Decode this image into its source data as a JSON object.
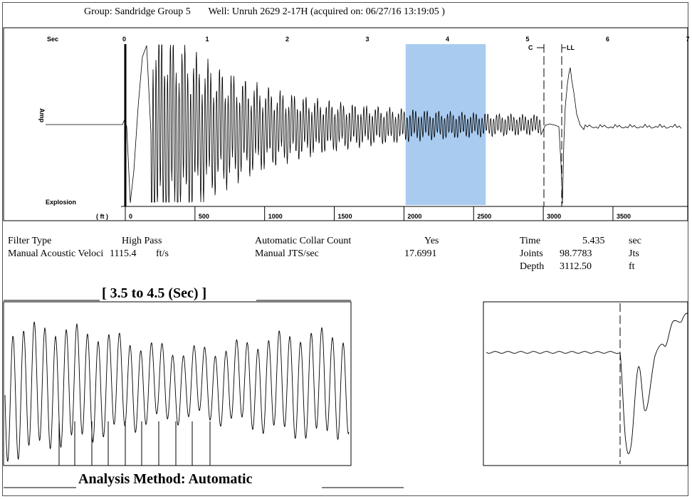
{
  "header": {
    "group": "Group: Sandridge Group 5",
    "well": "Well: Unruh 2629 2-17H (acquired on: 06/27/16 13:19:05 )"
  },
  "main_chart": {
    "sec_label": "Sec",
    "ft_label": "( ft )",
    "explosion_label": "Explosion",
    "amp_label": "Amp",
    "c_marker": "C",
    "ll_marker": "LL",
    "sec_ticks": [
      "0",
      "1",
      "2",
      "3",
      "4",
      "5",
      "6",
      "7"
    ],
    "ft_ticks": [
      "0",
      "500",
      "1000",
      "1500",
      "2000",
      "2500",
      "3000",
      "3500"
    ],
    "highlight_sec": [
      3.5,
      4.5
    ],
    "highlight_color": "#a9cbf0"
  },
  "params": {
    "filter_label": "Filter Type",
    "filter_value": "High Pass",
    "velocity_label": "Manual Acoustic Veloci",
    "velocity_value": "1115.4",
    "velocity_unit": "ft/s",
    "collar_label": "Automatic Collar Count",
    "collar_value": "Yes",
    "jts_label": "Manual JTS/sec",
    "jts_value": "17.6991",
    "time_label": "Time",
    "time_value": "5.435",
    "time_unit": "sec",
    "joints_label": "Joints",
    "joints_value": "98.7783",
    "joints_unit": "Jts",
    "depth_label": "Depth",
    "depth_value": "3112.50",
    "depth_unit": "ft"
  },
  "zoom": {
    "title": "[ 3.5  to  4.5 (Sec) ]"
  },
  "analysis": {
    "text": "Analysis Method:   Automatic"
  },
  "chart_data": {
    "type": "line",
    "x_unit": "sec",
    "x_range": [
      0,
      7
    ],
    "depth_ft_range": [
      0,
      3800
    ],
    "events": [
      {
        "name": "Explosion",
        "x": 0
      },
      {
        "name": "C",
        "x": 5.3
      },
      {
        "name": "LL",
        "x": 5.435
      }
    ],
    "highlight": [
      3.5,
      4.5
    ],
    "time_sec": 5.435,
    "joints": 98.7783,
    "depth_ft": 3112.5
  }
}
